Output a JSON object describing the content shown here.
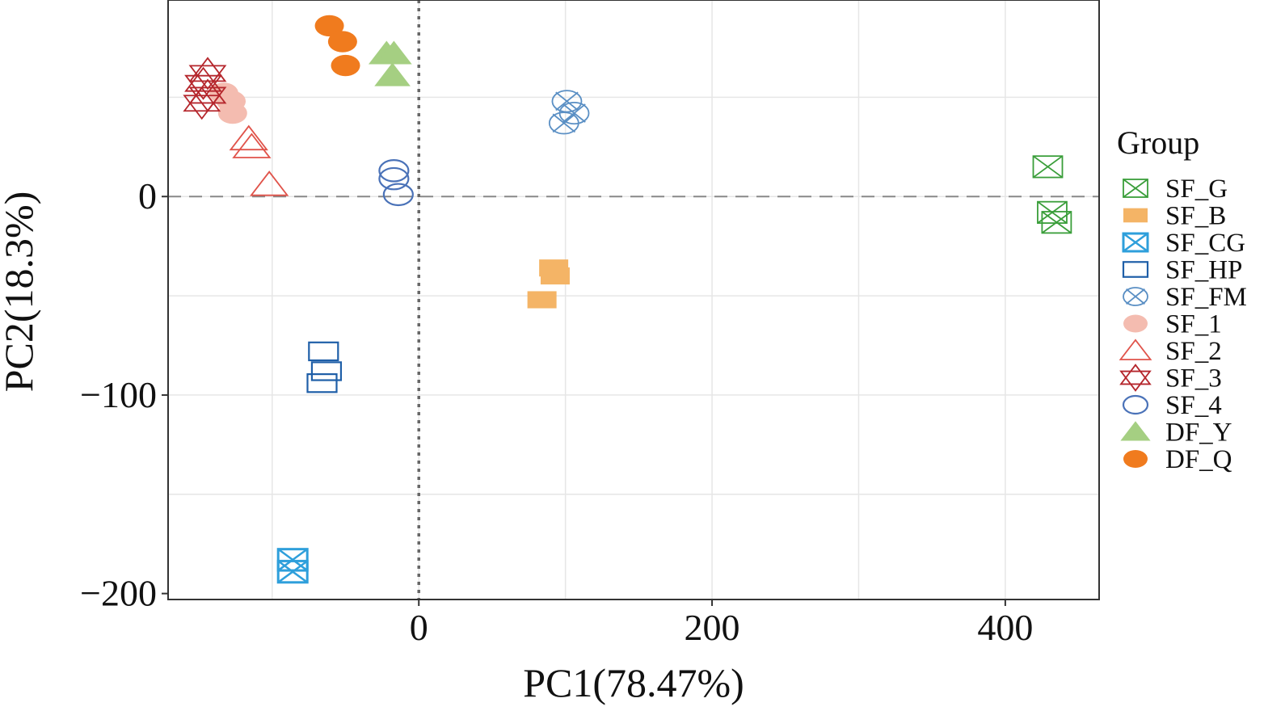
{
  "chart_data": {
    "type": "scatter",
    "xlabel": "PC1(78.47%)",
    "ylabel": "PC2(18.3%)",
    "xlim": [
      -171,
      464
    ],
    "ylim": [
      -203,
      99
    ],
    "x_ticks": [
      0,
      200,
      400
    ],
    "y_ticks": [
      0,
      -100,
      -200
    ],
    "x_tick_labels": [
      "0",
      "200",
      "400"
    ],
    "y_tick_labels": [
      "0",
      "−100",
      "−200"
    ],
    "grid": true,
    "reference_lines": {
      "vertical_x": 0,
      "horizontal_y": 0
    },
    "legend": {
      "title": "Group",
      "position": "right"
    },
    "series": [
      {
        "name": "SF_G",
        "marker": "box-x",
        "color": "#3a9e3a",
        "x": [
          429,
          432,
          435
        ],
        "y": [
          15,
          -8,
          -13
        ]
      },
      {
        "name": "SF_B",
        "marker": "filled-rect",
        "color": "#f4b466",
        "x": [
          92,
          93,
          84
        ],
        "y": [
          -36,
          -40,
          -52
        ]
      },
      {
        "name": "SF_CG",
        "marker": "box-hourglass",
        "color": "#2e9fdb",
        "x": -86,
        "y": [
          -183,
          -189
        ]
      },
      {
        "name": "SF_HP",
        "marker": "open-rect",
        "color": "#1f5fa8",
        "x": [
          -65,
          -63,
          -66
        ],
        "y": [
          -78,
          -88,
          -94
        ]
      },
      {
        "name": "SF_FM",
        "marker": "circle-x",
        "color": "#5a8fc4",
        "x": [
          101,
          106,
          99
        ],
        "y": [
          48,
          42,
          37
        ]
      },
      {
        "name": "SF_1",
        "marker": "filled-ellipse",
        "color": "#f4bcb0",
        "x": [
          -133,
          -128,
          -127
        ],
        "y": [
          52,
          48,
          42
        ]
      },
      {
        "name": "SF_2",
        "marker": "open-triangle",
        "color": "#e0534a",
        "x": [
          -116,
          -114,
          -102
        ],
        "y": [
          29,
          25,
          6
        ]
      },
      {
        "name": "SF_3",
        "marker": "star-of-david",
        "color": "#b5262c",
        "x": [
          -144,
          -147,
          -144,
          -148
        ],
        "y": [
          62,
          57,
          51,
          47
        ]
      },
      {
        "name": "SF_4",
        "marker": "open-ellipse",
        "color": "#4a72b8",
        "x": [
          -17,
          -17,
          -14
        ],
        "y": [
          13,
          9,
          1
        ]
      },
      {
        "name": "DF_Y",
        "marker": "filled-triangle",
        "color": "#a5cf82",
        "x": [
          -22,
          -17,
          -18
        ],
        "y": [
          72,
          72,
          61
        ]
      },
      {
        "name": "DF_Q",
        "marker": "filled-ellipse",
        "color": "#f07b1e",
        "x": [
          -61,
          -52,
          -50
        ],
        "y": [
          86,
          78,
          66
        ]
      }
    ]
  }
}
